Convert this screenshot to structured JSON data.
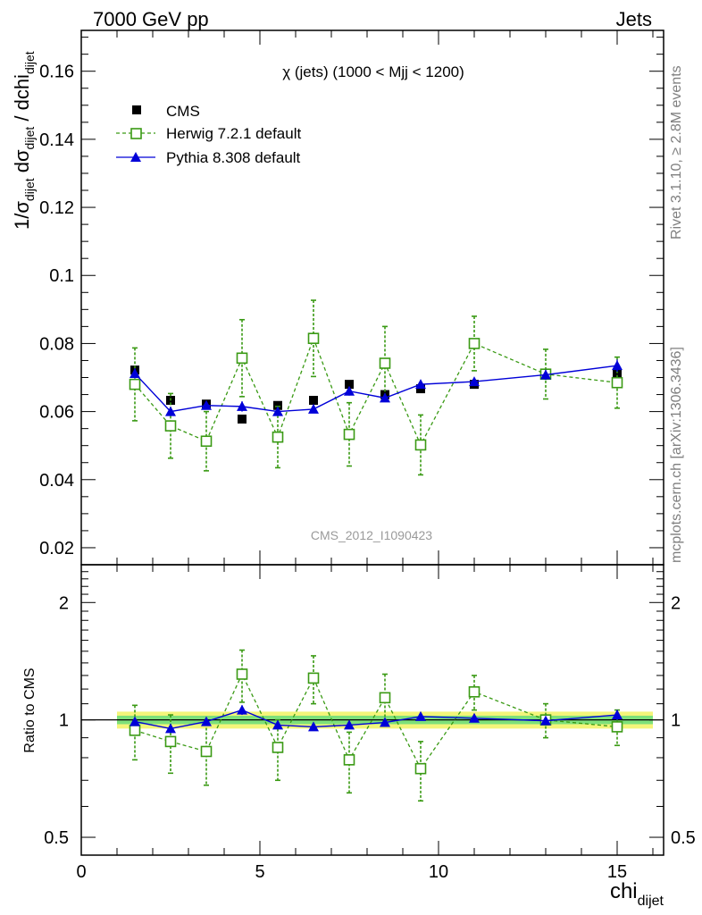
{
  "header": {
    "left": "7000 GeV pp",
    "right": "Jets"
  },
  "side_labels": {
    "rivet": "Rivet 3.1.10, ≥ 2.8M events",
    "mcplots": "mcplots.cern.ch [arXiv:1306.3436]"
  },
  "colors": {
    "cms": "#000000",
    "herwig": "#3a9a14",
    "pythia": "#0000d8",
    "band_inner": "#7de07a",
    "band_outer": "#f4f57a"
  },
  "chart_data": [
    {
      "type": "scatter",
      "title": "χ (jets) (1000 < Mjj < 1200)",
      "watermark": "CMS_2012_I1090423",
      "xlabel_main": "chi",
      "xlabel_sub": "dijet",
      "ylabel_parts": [
        "1/σ",
        "dijet",
        " dσ",
        "dijet",
        " / dchi",
        "dijet"
      ],
      "xlim": [
        0,
        16.3
      ],
      "ylim": [
        0.015,
        0.172
      ],
      "xticks": [
        "0",
        "5",
        "10",
        "15"
      ],
      "yticks": [
        "0.02",
        "0.04",
        "0.06",
        "0.08",
        "0.1",
        "0.12",
        "0.14",
        "0.16"
      ],
      "legend_position": "top-left",
      "x": [
        1.5,
        2.5,
        3.5,
        4.5,
        5.5,
        6.5,
        7.5,
        8.5,
        9.5,
        11,
        13,
        15
      ],
      "series": [
        {
          "name": "CMS",
          "values": [
            0.0722,
            0.0633,
            0.0622,
            0.0578,
            0.0618,
            0.0633,
            0.068,
            0.065,
            0.0667,
            0.068,
            0.071,
            0.0712
          ]
        },
        {
          "name": "Herwig 7.2.1 default",
          "values": [
            0.068,
            0.0558,
            0.0513,
            0.0757,
            0.0525,
            0.0815,
            0.0533,
            0.0742,
            0.0502,
            0.08,
            0.071,
            0.0685
          ],
          "errors": [
            0.0107,
            0.0095,
            0.0087,
            0.0113,
            0.009,
            0.0112,
            0.0093,
            0.0108,
            0.0088,
            0.008,
            0.0073,
            0.0075
          ]
        },
        {
          "name": "Pythia 8.308 default",
          "values": [
            0.0712,
            0.06,
            0.0618,
            0.0615,
            0.06,
            0.0607,
            0.066,
            0.064,
            0.068,
            0.0688,
            0.0708,
            0.0735
          ],
          "errors": [
            0.0015,
            0.001,
            0.001,
            0.0015,
            0.001,
            0.001,
            0.0013,
            0.001,
            0.0012,
            0.001,
            0.0015,
            0.0018
          ]
        }
      ]
    },
    {
      "type": "scatter",
      "ylabel": "Ratio to CMS",
      "xlim": [
        0,
        16.3
      ],
      "ylim": [
        0.45,
        2.5
      ],
      "ylog": true,
      "yticks": [
        "0.5",
        "1",
        "2"
      ],
      "reference_line": 1,
      "band_range": [
        1,
        16
      ],
      "band_inner": [
        0.975,
        1.025
      ],
      "band_outer": [
        0.95,
        1.05
      ],
      "x": [
        1.5,
        2.5,
        3.5,
        4.5,
        5.5,
        6.5,
        7.5,
        8.5,
        9.5,
        11,
        13,
        15
      ],
      "series": [
        {
          "name": "Herwig 7.2.1 default",
          "values": [
            0.94,
            0.88,
            0.83,
            1.31,
            0.85,
            1.28,
            0.79,
            1.14,
            0.75,
            1.18,
            1.0,
            0.96
          ],
          "errors": [
            0.15,
            0.15,
            0.15,
            0.2,
            0.15,
            0.18,
            0.14,
            0.17,
            0.13,
            0.12,
            0.1,
            0.1
          ]
        },
        {
          "name": "Pythia 8.308 default",
          "values": [
            0.99,
            0.95,
            0.99,
            1.06,
            0.97,
            0.96,
            0.97,
            0.985,
            1.02,
            1.01,
            0.995,
            1.03
          ],
          "errors": [
            0.02,
            0.02,
            0.02,
            0.03,
            0.02,
            0.02,
            0.02,
            0.02,
            0.02,
            0.02,
            0.02,
            0.03
          ]
        }
      ]
    }
  ]
}
